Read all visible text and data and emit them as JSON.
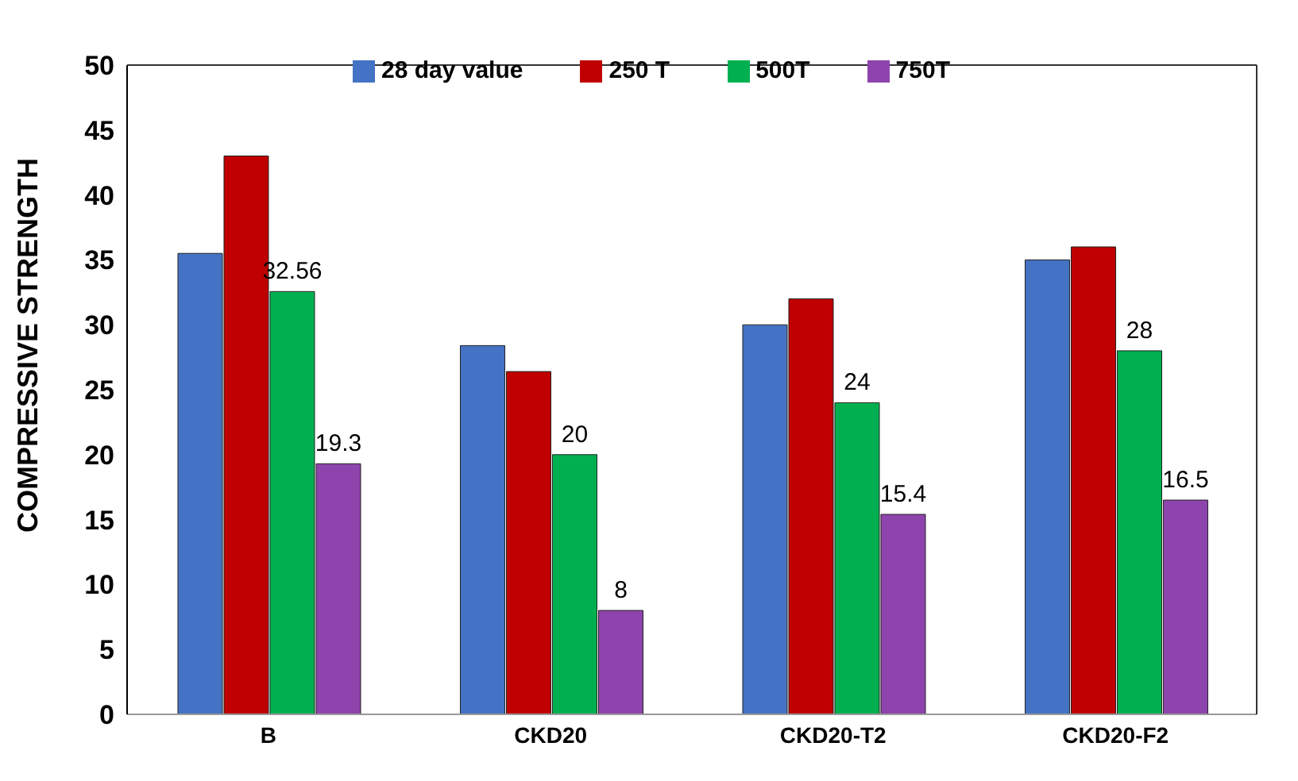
{
  "chart_data": {
    "type": "bar",
    "ylabel": "COMPRESSIVE STRENGTH",
    "categories": [
      "B",
      "CKD20",
      "CKD20-T2",
      "CKD20-F2"
    ],
    "series": [
      {
        "name": "28 day value",
        "color": "#4472c4",
        "values": [
          35.5,
          28.4,
          30,
          35
        ]
      },
      {
        "name": "250 T",
        "color": "#c00000",
        "values": [
          43,
          26.4,
          32,
          36
        ]
      },
      {
        "name": "500T",
        "color": "#00b050",
        "values": [
          32.56,
          20,
          24,
          28
        ],
        "value_labels": [
          "32.56",
          "20",
          "24",
          "28"
        ]
      },
      {
        "name": "750T",
        "color": "#8e44ad",
        "values": [
          19.3,
          8,
          15.4,
          16.5
        ],
        "value_labels": [
          "19.3",
          "8",
          "15.4",
          "16.5"
        ]
      }
    ],
    "ylim": [
      0,
      50
    ],
    "yticks": [
      0,
      5,
      10,
      15,
      20,
      25,
      30,
      35,
      40,
      45,
      50
    ],
    "grid": false,
    "legend": "top"
  }
}
